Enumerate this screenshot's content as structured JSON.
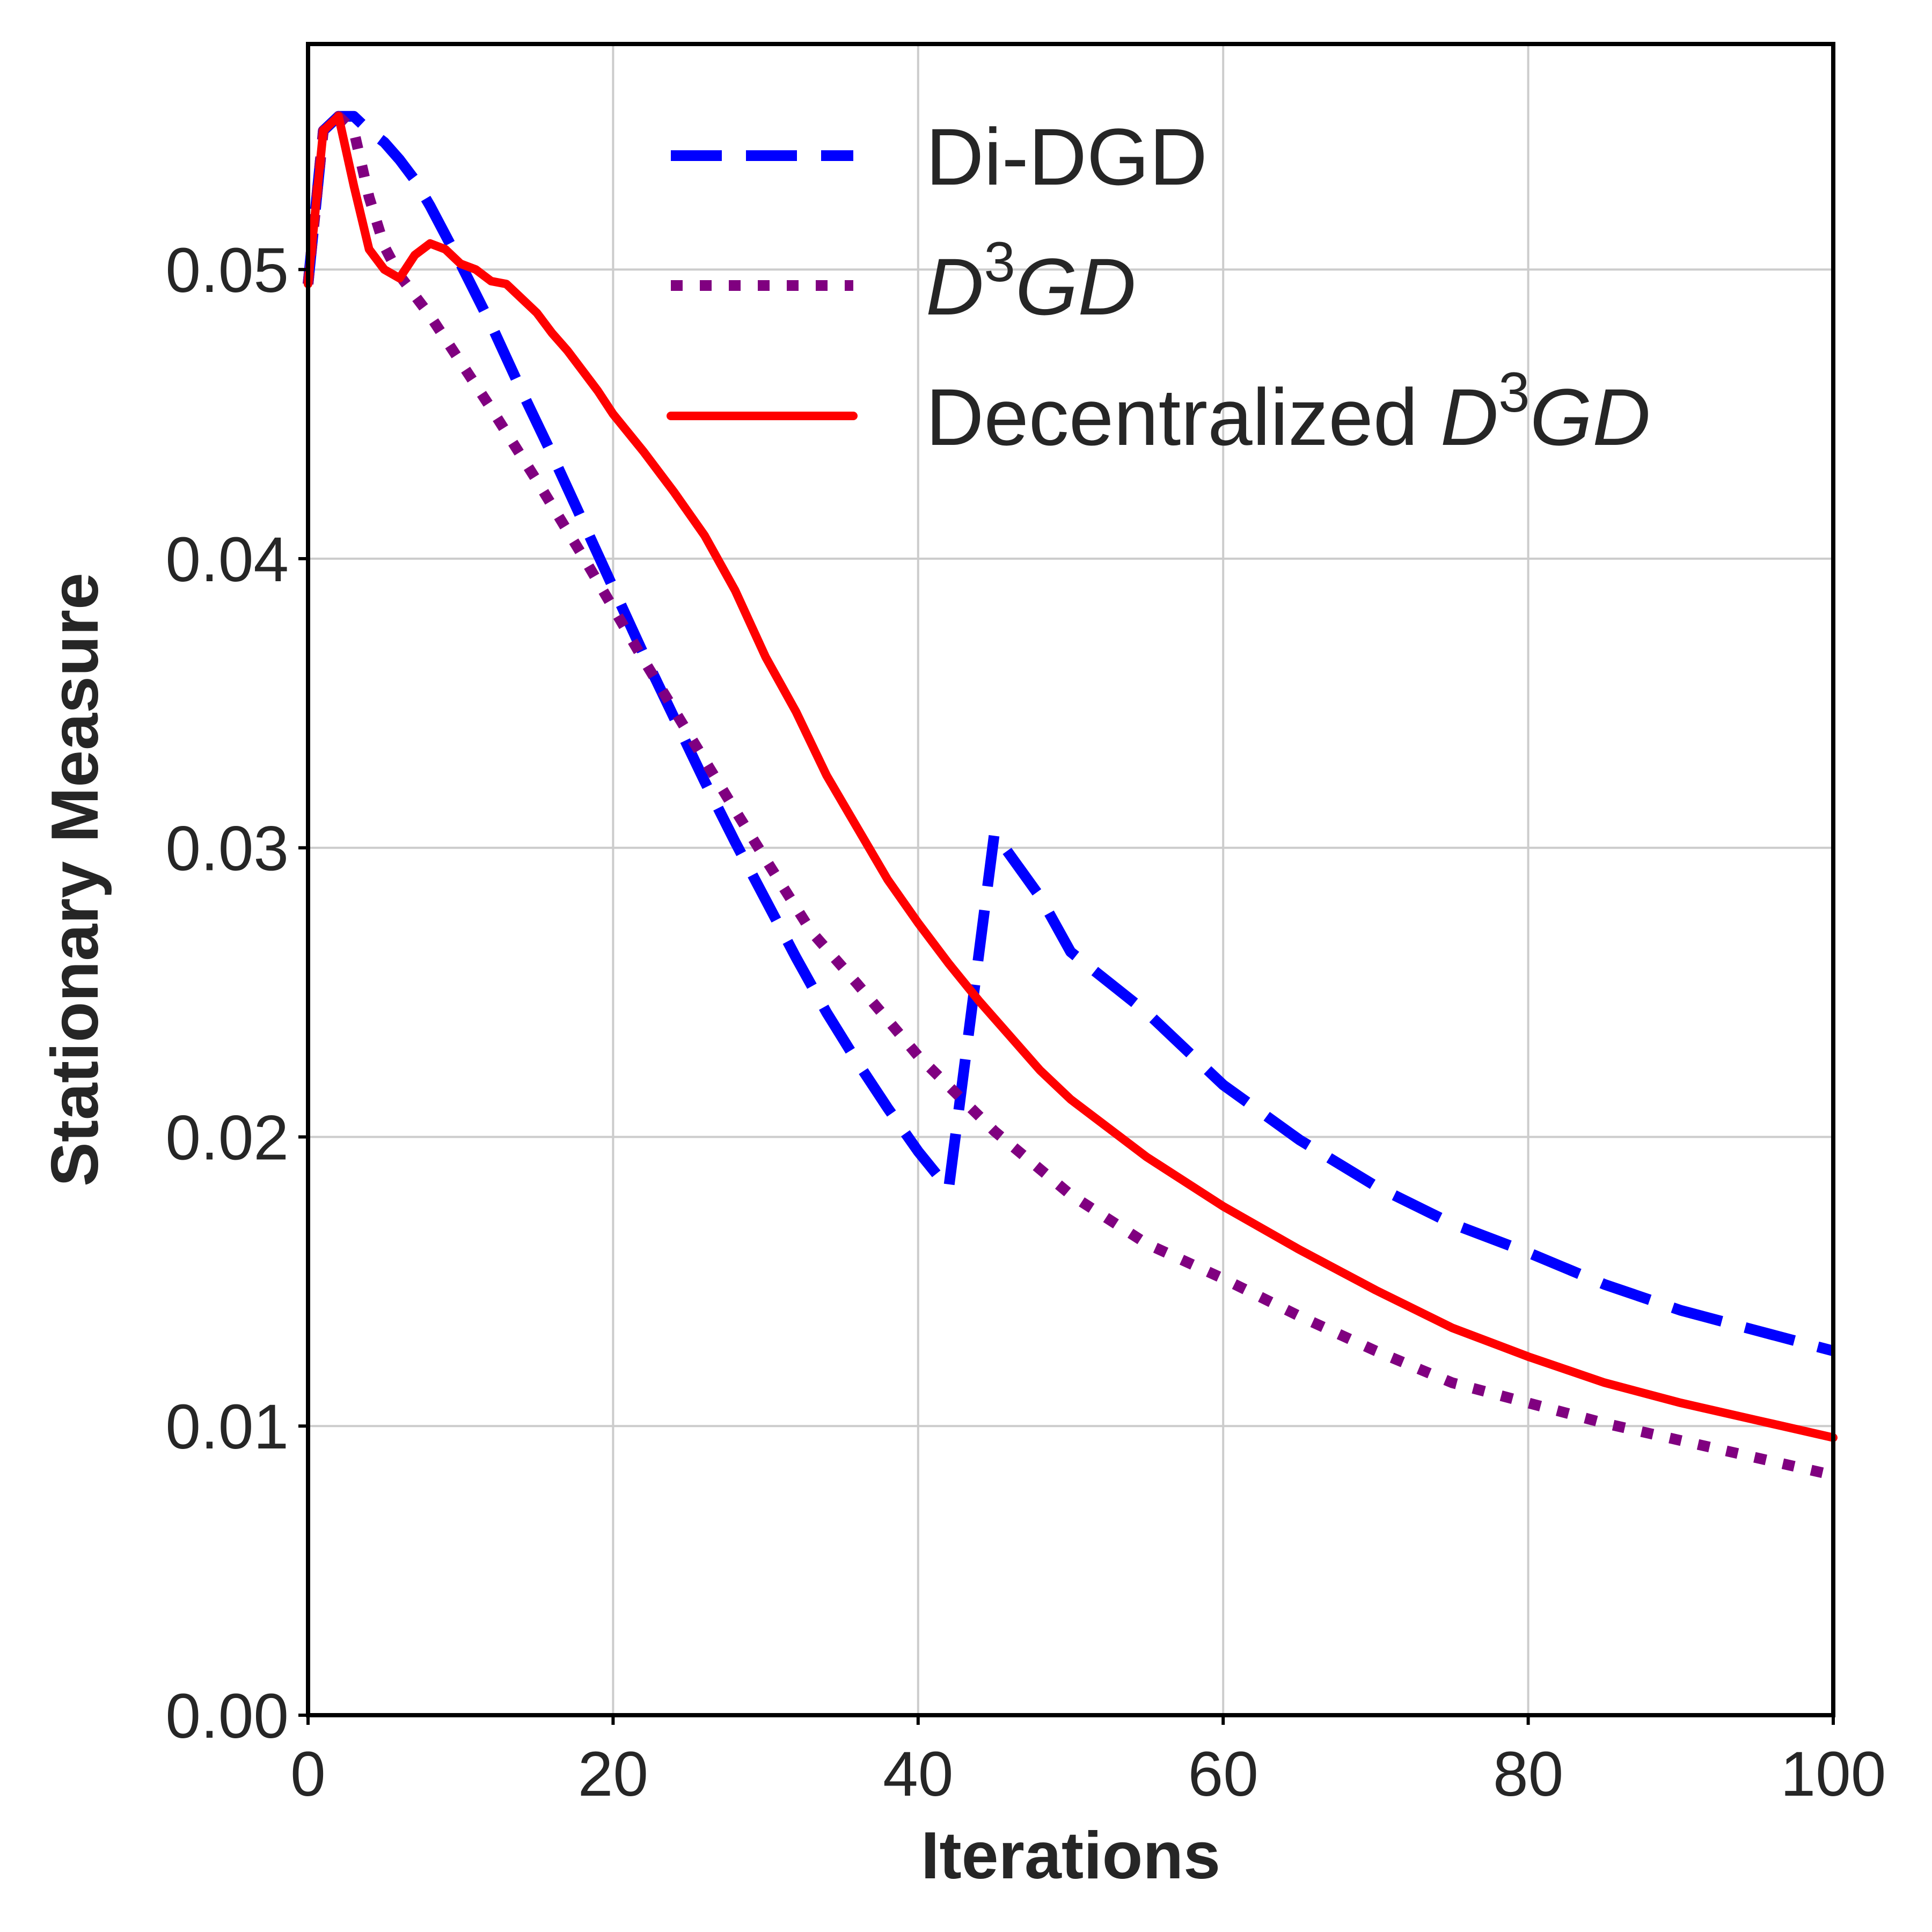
{
  "chart_data": {
    "type": "line",
    "title": "",
    "xlabel": "Iterations",
    "ylabel": "Stationary Measure",
    "xlim": [
      0,
      100
    ],
    "ylim": [
      0,
      0.0578
    ],
    "xticks": [
      0,
      20,
      40,
      60,
      80,
      100
    ],
    "xtick_labels": [
      "0",
      "20",
      "40",
      "60",
      "80",
      "100"
    ],
    "yticks": [
      0,
      0.01,
      0.02,
      0.03,
      0.04,
      0.05
    ],
    "ytick_labels": [
      "0.00",
      "0.01",
      "0.02",
      "0.03",
      "0.04",
      "0.05"
    ],
    "grid": true,
    "legend_position": "top-right",
    "series": [
      {
        "name": "Di-DGD",
        "legend": {
          "prefix": "Di-DGD",
          "math": ""
        },
        "style": "dashed",
        "color": "#0000ff",
        "x": [
          0,
          1,
          2,
          3,
          4,
          5,
          6,
          7,
          8,
          10,
          12,
          14,
          16,
          18,
          20,
          22,
          24,
          26,
          28,
          30,
          32,
          34,
          36,
          38,
          40,
          42,
          45,
          48,
          50,
          55,
          60,
          65,
          70,
          75,
          80,
          85,
          90,
          95,
          100
        ],
        "values": [
          0.0495,
          0.0548,
          0.0553,
          0.0553,
          0.0548,
          0.0544,
          0.0538,
          0.0531,
          0.0522,
          0.0502,
          0.0481,
          0.0458,
          0.0436,
          0.0413,
          0.039,
          0.0367,
          0.0345,
          0.0323,
          0.0302,
          0.0282,
          0.0262,
          0.0243,
          0.0226,
          0.021,
          0.0195,
          0.0182,
          0.0305,
          0.0283,
          0.0264,
          0.0243,
          0.0218,
          0.0199,
          0.0183,
          0.017,
          0.016,
          0.0149,
          0.014,
          0.0133,
          0.0126
        ]
      },
      {
        "name": "D3GD",
        "legend": {
          "prefix": "",
          "math": "D3GD"
        },
        "style": "dotted",
        "color": "#800080",
        "x": [
          0,
          1,
          2,
          3,
          4,
          5,
          6,
          8,
          10,
          12,
          15,
          18,
          20,
          22,
          25,
          28,
          30,
          33,
          36,
          40,
          45,
          50,
          55,
          60,
          65,
          70,
          75,
          80,
          85,
          90,
          95,
          100
        ],
        "values": [
          0.0495,
          0.0548,
          0.0553,
          0.0548,
          0.0525,
          0.0508,
          0.0498,
          0.0484,
          0.0468,
          0.0452,
          0.0427,
          0.0401,
          0.0383,
          0.0365,
          0.0339,
          0.0313,
          0.0296,
          0.0271,
          0.0253,
          0.0228,
          0.0202,
          0.018,
          0.0163,
          0.0151,
          0.0138,
          0.0126,
          0.0115,
          0.0108,
          0.0101,
          0.0095,
          0.0089,
          0.0083
        ]
      },
      {
        "name": "Decentralized D3GD",
        "legend": {
          "prefix": "Decentralized ",
          "math": "D3GD"
        },
        "style": "solid",
        "color": "#ff0000",
        "x": [
          0,
          1,
          2,
          3,
          4,
          5,
          6,
          7,
          8,
          9,
          10,
          11,
          12,
          13,
          14,
          15,
          16,
          17,
          18,
          19,
          20,
          22,
          24,
          26,
          28,
          30,
          32,
          34,
          36,
          38,
          40,
          42,
          44,
          46,
          48,
          50,
          55,
          60,
          65,
          70,
          75,
          80,
          85,
          90,
          95,
          100
        ],
        "values": [
          0.0495,
          0.0548,
          0.0553,
          0.0529,
          0.0507,
          0.05,
          0.0497,
          0.0505,
          0.0509,
          0.0507,
          0.0502,
          0.05,
          0.0496,
          0.0495,
          0.049,
          0.0485,
          0.0478,
          0.0472,
          0.0465,
          0.0458,
          0.045,
          0.0437,
          0.0423,
          0.0408,
          0.0389,
          0.0366,
          0.0347,
          0.0325,
          0.0307,
          0.0289,
          0.0274,
          0.026,
          0.0247,
          0.0235,
          0.0223,
          0.0213,
          0.0193,
          0.0176,
          0.0161,
          0.0147,
          0.0134,
          0.0124,
          0.0115,
          0.0108,
          0.0102,
          0.0096
        ]
      }
    ]
  }
}
